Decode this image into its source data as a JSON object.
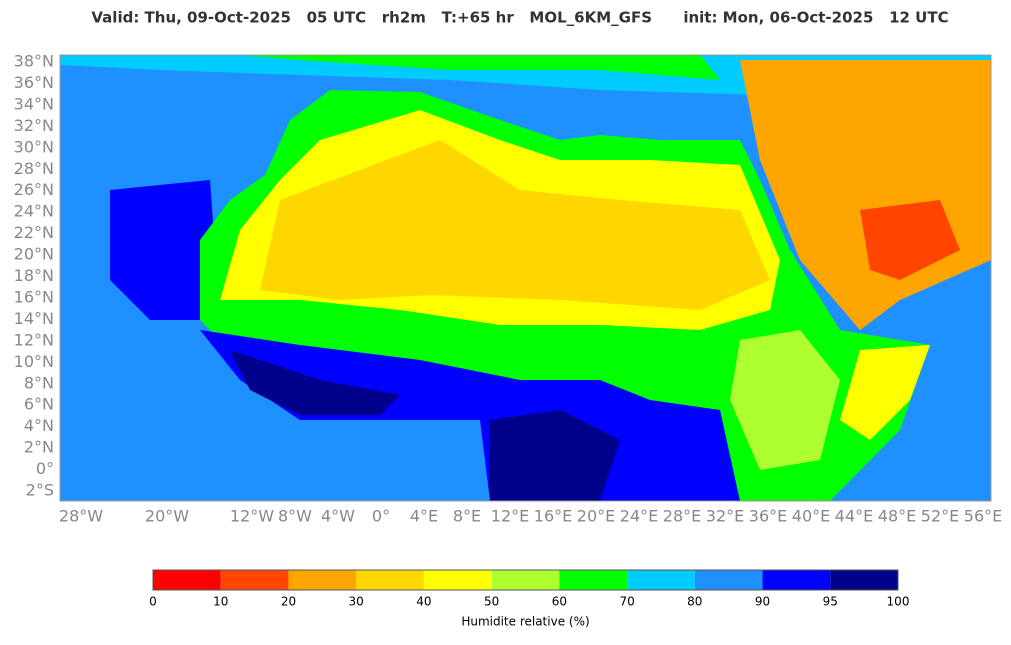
{
  "header": {
    "title": "Valid: Thu, 09-Oct-2025   05 UTC   rh2m   T:+65 hr   MOL_6KM_GFS      init: Mon, 06-Oct-2025   12 UTC"
  },
  "map": {
    "lat_labels": [
      "38°N",
      "36°N",
      "34°N",
      "32°N",
      "30°N",
      "28°N",
      "26°N",
      "24°N",
      "22°N",
      "20°N",
      "18°N",
      "16°N",
      "14°N",
      "12°N",
      "10°N",
      "8°N",
      "6°N",
      "4°N",
      "2°N",
      "0°",
      "2°S"
    ],
    "lon_labels": [
      "28°W",
      "20°W",
      "12°W",
      "8°W",
      "4°W",
      "0°",
      "4°E",
      "8°E",
      "12°E",
      "16°E",
      "20°E",
      "24°E",
      "28°E",
      "32°E",
      "36°E",
      "40°E",
      "44°E",
      "48°E",
      "52°E",
      "56°E"
    ]
  },
  "colorbar": {
    "ticks": [
      0,
      10,
      20,
      30,
      40,
      50,
      60,
      70,
      80,
      90,
      95,
      100
    ],
    "colors": [
      "#ff0000",
      "#ff4500",
      "#ffa500",
      "#ffd700",
      "#ffff00",
      "#adff2f",
      "#00ff00",
      "#00ccff",
      "#1e90ff",
      "#0000ff",
      "#00008b"
    ],
    "label": "Humidite relative (%)"
  }
}
